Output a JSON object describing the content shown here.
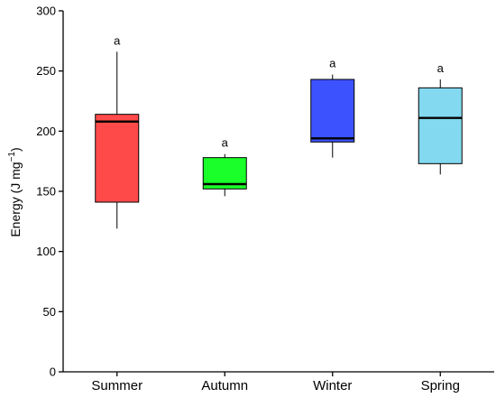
{
  "chart_data": {
    "type": "box",
    "title": "",
    "xlabel": "",
    "ylabel": {
      "prefix": "Energy (J mg",
      "superscript": "−1",
      "suffix": ")"
    },
    "ylim": [
      0,
      300
    ],
    "yticks": [
      "0",
      "50",
      "100",
      "150",
      "200",
      "250",
      "300"
    ],
    "grid": false,
    "legend": "none",
    "categories": [
      "Summer",
      "Autumn",
      "Winter",
      "Spring"
    ],
    "boxes": [
      {
        "category": "Summer",
        "min": 119,
        "q1": 141,
        "median": 208,
        "q3": 214,
        "max": 266,
        "color": "#ff4a4a",
        "label": "a"
      },
      {
        "category": "Autumn",
        "min": 146,
        "q1": 152,
        "median": 156,
        "q3": 178,
        "max": 181,
        "color": "#1aff2a",
        "label": "a"
      },
      {
        "category": "Winter",
        "min": 178,
        "q1": 191,
        "median": 194,
        "q3": 243,
        "max": 247,
        "color": "#3d52ff",
        "label": "a"
      },
      {
        "category": "Spring",
        "min": 164,
        "q1": 173,
        "median": 211,
        "q3": 236,
        "max": 243,
        "color": "#82d9f0",
        "label": "a"
      }
    ]
  }
}
